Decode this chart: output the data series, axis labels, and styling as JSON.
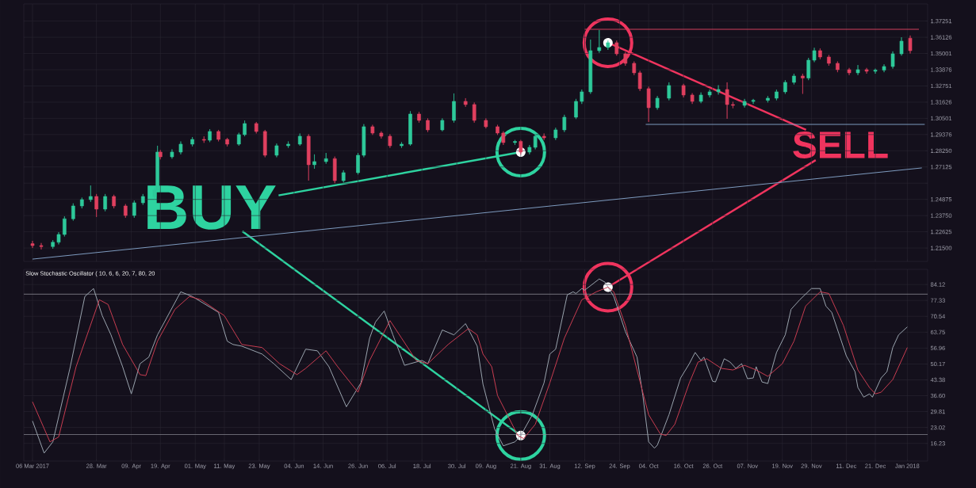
{
  "chart_data": [
    {
      "type": "candlestick",
      "x": [
        "2017-03-06",
        "2017-03-09",
        "2017-03-13",
        "2017-03-15",
        "2017-03-17",
        "2017-03-20",
        "2017-03-23",
        "2017-03-26",
        "2017-03-28",
        "2017-03-31",
        "2017-04-03",
        "2017-04-07",
        "2017-04-10",
        "2017-04-13",
        "2017-04-17",
        "2017-04-18",
        "2017-04-19",
        "2017-04-23",
        "2017-04-26",
        "2017-04-30",
        "2017-05-04",
        "2017-05-06",
        "2017-05-09",
        "2017-05-12",
        "2017-05-16",
        "2017-05-18",
        "2017-05-22",
        "2017-05-25",
        "2017-05-29",
        "2017-06-02",
        "2017-06-06",
        "2017-06-09",
        "2017-06-11",
        "2017-06-15",
        "2017-06-18",
        "2017-06-21",
        "2017-06-26",
        "2017-06-28",
        "2017-07-01",
        "2017-07-04",
        "2017-07-07",
        "2017-07-11",
        "2017-07-14",
        "2017-07-17",
        "2017-07-20",
        "2017-07-25",
        "2017-07-29",
        "2017-08-02",
        "2017-08-05",
        "2017-08-09",
        "2017-08-13",
        "2017-08-15",
        "2017-08-19",
        "2017-08-21",
        "2017-08-24",
        "2017-08-26",
        "2017-08-29",
        "2017-09-02",
        "2017-09-05",
        "2017-09-09",
        "2017-09-11",
        "2017-09-14",
        "2017-09-17",
        "2017-09-20",
        "2017-09-23",
        "2017-09-26",
        "2017-09-29",
        "2017-10-01",
        "2017-10-04",
        "2017-10-07",
        "2017-10-11",
        "2017-10-16",
        "2017-10-19",
        "2017-10-22",
        "2017-10-25",
        "2017-10-28",
        "2017-10-31",
        "2017-11-02",
        "2017-11-06",
        "2017-11-09",
        "2017-11-14",
        "2017-11-17",
        "2017-11-20",
        "2017-11-23",
        "2017-11-26",
        "2017-11-28",
        "2017-11-30",
        "2017-12-02",
        "2017-12-05",
        "2017-12-08",
        "2017-12-12",
        "2017-12-15",
        "2017-12-18",
        "2017-12-21",
        "2017-12-24",
        "2017-12-27",
        "2017-12-30",
        "2018-01-02"
      ],
      "ohlc": [
        [
          1.218,
          1.22,
          1.215,
          1.2167
        ],
        [
          1.2167,
          1.2185,
          1.214,
          1.216
        ],
        [
          1.216,
          1.2205,
          1.2145,
          1.219
        ],
        [
          1.219,
          1.226,
          1.2175,
          1.2244
        ],
        [
          1.2244,
          1.237,
          1.223,
          1.2353
        ],
        [
          1.2353,
          1.246,
          1.234,
          1.2442
        ],
        [
          1.2442,
          1.25,
          1.2425,
          1.2486
        ],
        [
          1.2486,
          1.2584,
          1.247,
          1.2508
        ],
        [
          1.2508,
          1.2525,
          1.2365,
          1.242
        ],
        [
          1.242,
          1.2525,
          1.2405,
          1.2508
        ],
        [
          1.2508,
          1.252,
          1.2425,
          1.2442
        ],
        [
          1.2442,
          1.2455,
          1.236,
          1.2376
        ],
        [
          1.2376,
          1.248,
          1.236,
          1.2464
        ],
        [
          1.2464,
          1.2525,
          1.245,
          1.2508
        ],
        [
          1.2508,
          1.257,
          1.249,
          1.2552
        ],
        [
          1.2552,
          1.286,
          1.254,
          1.2816
        ],
        [
          1.2816,
          1.283,
          1.2765,
          1.2783
        ],
        [
          1.2783,
          1.2835,
          1.277,
          1.2816
        ],
        [
          1.2816,
          1.289,
          1.28,
          1.2871
        ],
        [
          1.2871,
          1.292,
          1.2855,
          1.2904
        ],
        [
          1.2904,
          1.2925,
          1.288,
          1.2898
        ],
        [
          1.2898,
          1.2975,
          1.2885,
          1.2959
        ],
        [
          1.2959,
          1.297,
          1.289,
          1.2904
        ],
        [
          1.2904,
          1.2915,
          1.2855,
          1.2871
        ],
        [
          1.2871,
          1.295,
          1.286,
          1.2937
        ],
        [
          1.2937,
          1.3035,
          1.2925,
          1.3014
        ],
        [
          1.3014,
          1.3025,
          1.2945,
          1.2959
        ],
        [
          1.2959,
          1.297,
          1.278,
          1.2794
        ],
        [
          1.2794,
          1.2875,
          1.278,
          1.286
        ],
        [
          1.286,
          1.289,
          1.2845,
          1.2871
        ],
        [
          1.2871,
          1.2945,
          1.286,
          1.2926
        ],
        [
          1.2926,
          1.294,
          1.2618,
          1.2728
        ],
        [
          1.2728,
          1.28,
          1.27,
          1.275
        ],
        [
          1.275,
          1.281,
          1.2735,
          1.277
        ],
        [
          1.277,
          1.2785,
          1.26,
          1.2618
        ],
        [
          1.2618,
          1.269,
          1.2605,
          1.2673
        ],
        [
          1.2673,
          1.281,
          1.266,
          1.2794
        ],
        [
          1.2794,
          1.301,
          1.278,
          1.2992
        ],
        [
          1.2992,
          1.3005,
          1.2935,
          1.2948
        ],
        [
          1.2948,
          1.296,
          1.291,
          1.2926
        ],
        [
          1.2926,
          1.294,
          1.2845,
          1.286
        ],
        [
          1.286,
          1.2885,
          1.2845,
          1.2871
        ],
        [
          1.2871,
          1.31,
          1.286,
          1.308
        ],
        [
          1.308,
          1.3095,
          1.302,
          1.3036
        ],
        [
          1.3036,
          1.305,
          1.2955,
          1.297
        ],
        [
          1.297,
          1.305,
          1.296,
          1.3036
        ],
        [
          1.3036,
          1.3223,
          1.302,
          1.3168
        ],
        [
          1.3168,
          1.319,
          1.313,
          1.3146
        ],
        [
          1.3146,
          1.316,
          1.302,
          1.3036
        ],
        [
          1.3036,
          1.305,
          1.298,
          1.2992
        ],
        [
          1.2992,
          1.3005,
          1.2935,
          1.2948
        ],
        [
          1.2948,
          1.296,
          1.2865,
          1.2882
        ],
        [
          1.2882,
          1.29,
          1.2865,
          1.289
        ],
        [
          1.289,
          1.29,
          1.28,
          1.2816
        ],
        [
          1.2816,
          1.2865,
          1.28,
          1.2849
        ],
        [
          1.2849,
          1.294,
          1.2835,
          1.2926
        ],
        [
          1.2926,
          1.2945,
          1.29,
          1.2915
        ],
        [
          1.2915,
          1.2985,
          1.29,
          1.297
        ],
        [
          1.297,
          1.3075,
          1.2955,
          1.3058
        ],
        [
          1.3058,
          1.3185,
          1.3045,
          1.3168
        ],
        [
          1.3168,
          1.325,
          1.315,
          1.3234
        ],
        [
          1.3234,
          1.3597,
          1.322,
          1.352
        ],
        [
          1.352,
          1.3663,
          1.3505,
          1.3542
        ],
        [
          1.3542,
          1.359,
          1.3525,
          1.3575
        ],
        [
          1.3575,
          1.359,
          1.3485,
          1.3498
        ],
        [
          1.3498,
          1.351,
          1.3415,
          1.3432
        ],
        [
          1.3432,
          1.3445,
          1.335,
          1.3366
        ],
        [
          1.3366,
          1.338,
          1.324,
          1.3256
        ],
        [
          1.3256,
          1.327,
          1.3025,
          1.3124
        ],
        [
          1.3124,
          1.3205,
          1.311,
          1.319
        ],
        [
          1.319,
          1.33,
          1.3175,
          1.3278
        ],
        [
          1.3278,
          1.329,
          1.3195,
          1.3212
        ],
        [
          1.3212,
          1.3225,
          1.315,
          1.3168
        ],
        [
          1.3168,
          1.323,
          1.3155,
          1.3212
        ],
        [
          1.3212,
          1.325,
          1.3195,
          1.3234
        ],
        [
          1.3234,
          1.328,
          1.3215,
          1.325
        ],
        [
          1.325,
          1.33,
          1.3047,
          1.3146
        ],
        [
          1.3146,
          1.3165,
          1.312,
          1.314
        ],
        [
          1.314,
          1.3185,
          1.3125,
          1.3168
        ],
        [
          1.3168,
          1.3185,
          1.315,
          1.3175
        ],
        [
          1.3175,
          1.3205,
          1.316,
          1.319
        ],
        [
          1.319,
          1.325,
          1.3175,
          1.3234
        ],
        [
          1.3234,
          1.3315,
          1.322,
          1.33
        ],
        [
          1.33,
          1.336,
          1.3285,
          1.3344
        ],
        [
          1.3344,
          1.336,
          1.322,
          1.333
        ],
        [
          1.333,
          1.347,
          1.3315,
          1.3454
        ],
        [
          1.3454,
          1.354,
          1.344,
          1.352
        ],
        [
          1.352,
          1.3535,
          1.346,
          1.3476
        ],
        [
          1.3476,
          1.349,
          1.3415,
          1.3432
        ],
        [
          1.3432,
          1.3445,
          1.337,
          1.3388
        ],
        [
          1.3388,
          1.34,
          1.335,
          1.3366
        ],
        [
          1.3366,
          1.342,
          1.335,
          1.3388
        ],
        [
          1.3388,
          1.34,
          1.336,
          1.3377
        ],
        [
          1.3377,
          1.3395,
          1.336,
          1.3385
        ],
        [
          1.3385,
          1.3425,
          1.337,
          1.341
        ],
        [
          1.341,
          1.3515,
          1.3395,
          1.3498
        ],
        [
          1.3498,
          1.3613,
          1.3485,
          1.3586
        ],
        [
          1.3606,
          1.3625,
          1.35,
          1.352
        ]
      ],
      "series": [
        {
          "type": "line",
          "color": "#7d9bbf",
          "x": [
            "2017-03-06",
            "2018-01-06"
          ],
          "values": [
            1.2073,
            1.2706
          ]
        },
        {
          "type": "line",
          "color": "#d4405e",
          "x": [
            "2017-09-12",
            "2018-01-05"
          ],
          "values": [
            1.3668,
            1.3668
          ]
        },
        {
          "type": "line",
          "color": "#7d9bbf",
          "x": [
            "2017-10-03",
            "2018-01-07"
          ],
          "values": [
            1.3008,
            1.3008
          ]
        }
      ],
      "xlim": [
        "2017-03-03",
        "2018-01-08"
      ],
      "xticks": [
        {
          "value": "2017-03-06",
          "label": null
        },
        {
          "value": "2017-03-28",
          "label": null
        },
        {
          "value": "2017-04-09",
          "label": null
        },
        {
          "value": "2017-04-19",
          "label": null
        },
        {
          "value": "2017-05-01",
          "label": null
        },
        {
          "value": "2017-05-11",
          "label": null
        },
        {
          "value": "2017-05-23",
          "label": null
        },
        {
          "value": "2017-06-04",
          "label": null
        },
        {
          "value": "2017-06-14",
          "label": null
        },
        {
          "value": "2017-06-26",
          "label": null
        },
        {
          "value": "2017-07-06",
          "label": null
        },
        {
          "value": "2017-07-18",
          "label": null
        },
        {
          "value": "2017-07-30",
          "label": null
        },
        {
          "value": "2017-08-09",
          "label": null
        },
        {
          "value": "2017-08-21",
          "label": null
        },
        {
          "value": "2017-08-31",
          "label": null
        },
        {
          "value": "2017-09-12",
          "label": null
        },
        {
          "value": "2017-09-24",
          "label": null
        },
        {
          "value": "2017-10-04",
          "label": null
        },
        {
          "value": "2017-10-16",
          "label": null
        },
        {
          "value": "2017-10-26",
          "label": null
        },
        {
          "value": "2017-11-07",
          "label": null
        },
        {
          "value": "2017-11-19",
          "label": null
        },
        {
          "value": "2017-11-29",
          "label": null
        },
        {
          "value": "2017-12-11",
          "label": null
        },
        {
          "value": "2017-12-21",
          "label": null
        },
        {
          "value": "2018-01-01",
          "label": null
        }
      ],
      "ylim": [
        1.2057,
        1.3844
      ],
      "yticks": [
        {
          "value": 1.215,
          "label": "1.21500"
        },
        1.22625,
        {
          "value": 1.2375,
          "label": "1.23750"
        },
        1.24875,
        {
          "value": 1.26,
          "label": null
        },
        1.27125,
        {
          "value": 1.2825,
          "label": "1.28250"
        },
        1.29376,
        1.30501,
        1.31626,
        1.32751,
        1.33876,
        1.35001,
        1.36126,
        1.37251
      ],
      "tick_labels": "y",
      "grid": true,
      "annotations": [
        {
          "text": "BUY",
          "x": "2017-08-21",
          "y": 1.2816
        },
        {
          "text": "SELL",
          "x": "2017-09-20",
          "y": 1.3575
        }
      ]
    },
    {
      "type": "line",
      "title": "Slow Stochastic Oscillator ( 10, 6, 6, 20, 7, 80, 20",
      "series": [
        {
          "color": "#9aa4ae",
          "x": [
            "2017-03-06",
            "2017-03-10",
            "2017-03-13",
            "2017-03-19",
            "2017-03-24",
            "2017-03-27",
            "2017-03-30",
            "2017-04-02",
            "2017-04-06",
            "2017-04-09",
            "2017-04-12",
            "2017-04-15",
            "2017-04-18",
            "2017-04-26",
            "2017-04-30",
            "2017-05-09",
            "2017-05-12",
            "2017-05-14",
            "2017-05-17",
            "2017-05-24",
            "2017-05-28",
            "2017-06-03",
            "2017-06-08",
            "2017-06-12",
            "2017-06-16",
            "2017-06-22",
            "2017-06-27",
            "2017-06-30",
            "2017-07-02",
            "2017-07-05",
            "2017-07-08",
            "2017-07-12",
            "2017-07-18",
            "2017-07-20",
            "2017-07-25",
            "2017-07-29",
            "2017-08-02",
            "2017-08-06",
            "2017-08-08",
            "2017-08-12",
            "2017-08-15",
            "2017-08-19",
            "2017-08-21",
            "2017-08-25",
            "2017-08-29",
            "2017-08-31",
            "2017-09-02",
            "2017-09-06",
            "2017-09-08",
            "2017-09-09",
            "2017-09-11",
            "2017-09-12",
            "2017-09-17",
            "2017-09-19",
            "2017-09-22",
            "2017-09-26",
            "2017-09-30",
            "2017-10-02",
            "2017-10-04",
            "2017-10-06",
            "2017-10-07",
            "2017-10-11",
            "2017-10-15",
            "2017-10-18",
            "2017-10-20",
            "2017-10-22",
            "2017-10-23",
            "2017-10-26",
            "2017-10-27",
            "2017-10-30",
            "2017-11-01",
            "2017-11-03",
            "2017-11-05",
            "2017-11-07",
            "2017-11-09",
            "2017-11-10",
            "2017-11-12",
            "2017-11-14",
            "2017-11-17",
            "2017-11-20",
            "2017-11-22",
            "2017-11-25",
            "2017-11-29",
            "2017-12-02",
            "2017-12-04",
            "2017-12-06",
            "2017-12-11",
            "2017-12-14",
            "2017-12-15",
            "2017-12-17",
            "2017-12-19",
            "2017-12-20",
            "2017-12-23",
            "2017-12-25",
            "2017-12-27",
            "2017-12-29",
            "2018-01-01"
          ],
          "values": [
            25.8,
            12.1,
            16.9,
            49,
            79,
            82.4,
            70.8,
            62.6,
            49,
            37.4,
            50.3,
            53.1,
            62.6,
            81,
            79,
            72.2,
            59.9,
            58.5,
            57.8,
            54.4,
            50.3,
            43.5,
            56.5,
            55.8,
            49,
            31.9,
            42.1,
            61.2,
            68.1,
            72.8,
            62.6,
            49.6,
            51.7,
            50.3,
            64.7,
            62.6,
            67.4,
            57.8,
            41.5,
            22.4,
            15.2,
            16.9,
            19.6,
            28.5,
            42.1,
            54.4,
            56.5,
            79.7,
            81,
            80.3,
            82.4,
            81.7,
            86.5,
            85.1,
            79,
            64,
            53.1,
            36.7,
            16.9,
            14.2,
            15.5,
            28.5,
            44.2,
            50.3,
            55.1,
            51.7,
            53.1,
            42.8,
            42.5,
            52.4,
            51,
            48.3,
            50.3,
            43.9,
            44.2,
            49,
            42.5,
            41.8,
            55.1,
            62.6,
            73.5,
            77.6,
            82.4,
            82.4,
            74.9,
            72.2,
            53.7,
            46.9,
            40.1,
            36,
            37.4,
            36,
            44.2,
            46.9,
            57.2,
            62.6,
            66
          ]
        },
        {
          "color": "#c83c50",
          "x": [
            "2017-03-06",
            "2017-03-12",
            "2017-03-15",
            "2017-03-21",
            "2017-03-29",
            "2017-04-01",
            "2017-04-06",
            "2017-04-12",
            "2017-04-14",
            "2017-04-18",
            "2017-04-24",
            "2017-04-29",
            "2017-05-03",
            "2017-05-11",
            "2017-05-17",
            "2017-05-24",
            "2017-05-30",
            "2017-06-05",
            "2017-06-08",
            "2017-06-15",
            "2017-06-19",
            "2017-06-26",
            "2017-06-30",
            "2017-07-07",
            "2017-07-11",
            "2017-07-16",
            "2017-07-20",
            "2017-07-27",
            "2017-08-03",
            "2017-08-06",
            "2017-08-08",
            "2017-08-11",
            "2017-08-13",
            "2017-08-20",
            "2017-08-22",
            "2017-08-26",
            "2017-08-31",
            "2017-09-05",
            "2017-09-11",
            "2017-09-16",
            "2017-09-20",
            "2017-09-22",
            "2017-09-26",
            "2017-09-30",
            "2017-10-04",
            "2017-10-08",
            "2017-10-10",
            "2017-10-13",
            "2017-10-18",
            "2017-10-21",
            "2017-10-24",
            "2017-10-29",
            "2017-11-02",
            "2017-11-06",
            "2017-11-10",
            "2017-11-14",
            "2017-11-19",
            "2017-11-23",
            "2017-11-27",
            "2017-12-02",
            "2017-12-05",
            "2017-12-10",
            "2017-12-15",
            "2017-12-19",
            "2017-12-21",
            "2017-12-23",
            "2017-12-27",
            "2018-01-01"
          ],
          "values": [
            34,
            16.9,
            19,
            49,
            77.6,
            75.6,
            58.5,
            45.6,
            45.2,
            59.9,
            73.5,
            79,
            77.6,
            70.8,
            58.5,
            57.2,
            50.3,
            45.6,
            48.3,
            55.8,
            49,
            38.1,
            51.7,
            68.7,
            61.2,
            51.7,
            50.3,
            58.5,
            65.3,
            62.6,
            54.4,
            49,
            36.7,
            19.6,
            18.3,
            24.4,
            42.1,
            61.2,
            77.6,
            81,
            83,
            81,
            66.7,
            47.6,
            28.5,
            20.3,
            19.6,
            24.4,
            42.1,
            51,
            52.4,
            48.3,
            47.6,
            49.6,
            47.6,
            44.9,
            50.3,
            59.9,
            74.9,
            81,
            80.3,
            66.7,
            47.6,
            40.1,
            37.4,
            38.1,
            43.5,
            57.2
          ]
        }
      ],
      "xlim": [
        "2017-03-03",
        "2018-01-08"
      ],
      "xticks": [
        {
          "value": "2017-03-06",
          "label": "06 Mar 2017"
        },
        {
          "value": "2017-03-28",
          "label": "28. Mar"
        },
        {
          "value": "2017-04-09",
          "label": "09. Apr"
        },
        {
          "value": "2017-04-19",
          "label": "19. Apr"
        },
        {
          "value": "2017-05-01",
          "label": "01. May"
        },
        {
          "value": "2017-05-11",
          "label": "11. May"
        },
        {
          "value": "2017-05-23",
          "label": "23. May"
        },
        {
          "value": "2017-06-04",
          "label": "04. Jun"
        },
        {
          "value": "2017-06-14",
          "label": "14. Jun"
        },
        {
          "value": "2017-06-26",
          "label": "26. Jun"
        },
        {
          "value": "2017-07-06",
          "label": "06. Jul"
        },
        {
          "value": "2017-07-18",
          "label": "18. Jul"
        },
        {
          "value": "2017-07-30",
          "label": "30. Jul"
        },
        {
          "value": "2017-08-09",
          "label": "09. Aug"
        },
        {
          "value": "2017-08-21",
          "label": "21. Aug"
        },
        {
          "value": "2017-08-31",
          "label": "31. Aug"
        },
        {
          "value": "2017-09-12",
          "label": "12. Sep"
        },
        {
          "value": "2017-09-24",
          "label": "24. Sep"
        },
        {
          "value": "2017-10-04",
          "label": "04. Oct"
        },
        {
          "value": "2017-10-16",
          "label": "16. Oct"
        },
        {
          "value": "2017-10-26",
          "label": "26. Oct"
        },
        {
          "value": "2017-11-07",
          "label": "07. Nov"
        },
        {
          "value": "2017-11-19",
          "label": "19. Nov"
        },
        {
          "value": "2017-11-29",
          "label": "29. Nov"
        },
        {
          "value": "2017-12-11",
          "label": "11. Dec"
        },
        {
          "value": "2017-12-21",
          "label": "21. Dec"
        },
        {
          "value": "2018-01-01",
          "label": "Jan 2018"
        }
      ],
      "ylim": [
        8.7,
        90.6
      ],
      "yticks": [
        16.23,
        23.02,
        29.81,
        {
          "value": 36.6,
          "label": "36.60"
        },
        43.38,
        50.17,
        56.96,
        63.75,
        70.54,
        77.33,
        84.12
      ],
      "ref_lines": [
        {
          "axis": "y",
          "value": 80,
          "color": "#8a8a94"
        },
        {
          "axis": "y",
          "value": 20,
          "color": "#8a8a94"
        }
      ],
      "grid": true
    }
  ]
}
